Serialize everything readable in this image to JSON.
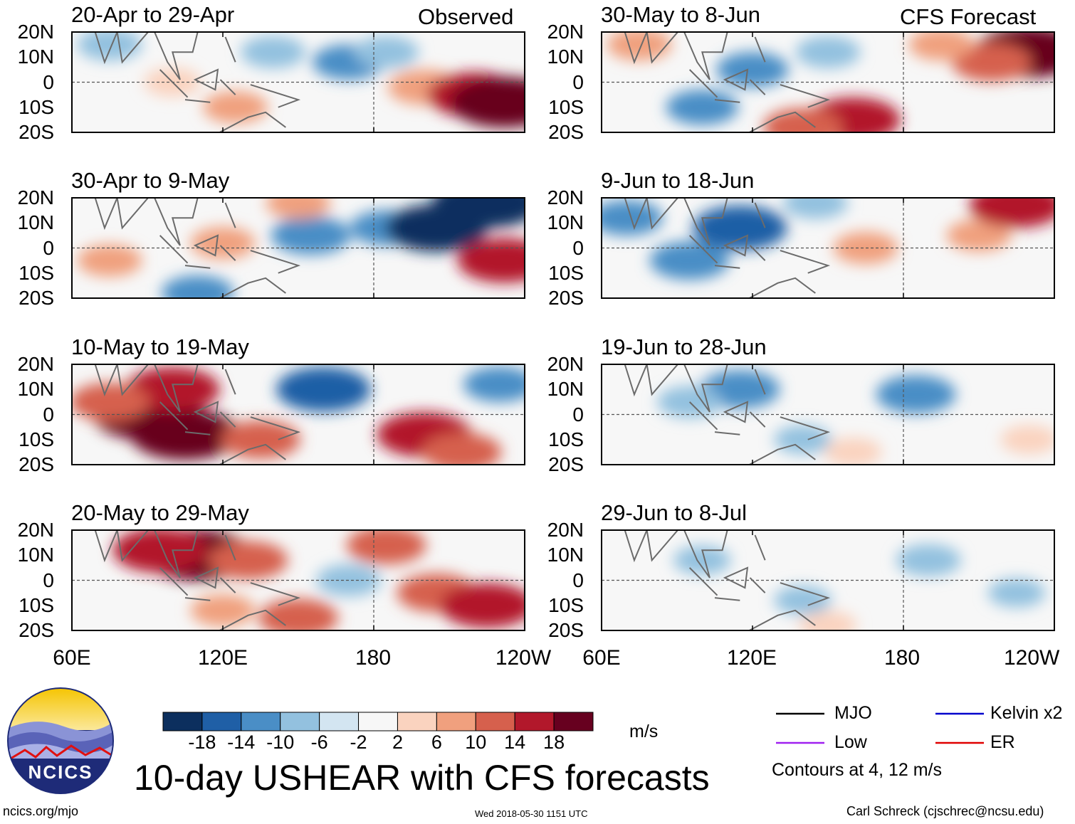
{
  "figure": {
    "title": "10-day USHEAR with CFS forecasts",
    "units": "m/s",
    "website": "ncics.org/mjo",
    "timestamp": "Wed 2018-05-30 1151 UTC",
    "credit": "Carl Schreck (cjschrec@ncsu.edu)",
    "logo_text": "NCICS",
    "left_column_label": "Observed",
    "right_column_label": "CFS Forecast"
  },
  "chart_data": [
    {
      "type": "heatmap",
      "panel": "observed",
      "title": "20-Apr to 29-Apr",
      "xlabel": "",
      "ylabel": "",
      "x_ticks": [
        "60E",
        "120E",
        "180",
        "120W"
      ],
      "y_ticks": [
        "20N",
        "10N",
        "0",
        "10S",
        "20S"
      ],
      "xlim": [
        60,
        240
      ],
      "ylim": [
        -20,
        20
      ],
      "blobs": [
        {
          "lon": 100,
          "lat": 0,
          "value": 4
        },
        {
          "lon": 125,
          "lat": -10,
          "value": 6
        },
        {
          "lon": 140,
          "lat": 12,
          "value": -6
        },
        {
          "lon": 170,
          "lat": 8,
          "value": -8
        },
        {
          "lon": 185,
          "lat": 12,
          "value": -6
        },
        {
          "lon": 200,
          "lat": -2,
          "value": 8
        },
        {
          "lon": 220,
          "lat": -5,
          "value": 14
        },
        {
          "lon": 232,
          "lat": -8,
          "value": 18
        },
        {
          "lon": 75,
          "lat": 15,
          "value": -6
        }
      ]
    },
    {
      "type": "heatmap",
      "panel": "observed",
      "title": "30-Apr to 9-May",
      "xlabel": "",
      "ylabel": "",
      "x_ticks": [
        "60E",
        "120E",
        "180",
        "120W"
      ],
      "y_ticks": [
        "20N",
        "10N",
        "0",
        "10S",
        "20S"
      ],
      "xlim": [
        60,
        240
      ],
      "ylim": [
        -20,
        20
      ],
      "blobs": [
        {
          "lon": 75,
          "lat": -5,
          "value": 6
        },
        {
          "lon": 120,
          "lat": 2,
          "value": 6
        },
        {
          "lon": 155,
          "lat": 5,
          "value": -10
        },
        {
          "lon": 185,
          "lat": 8,
          "value": -8
        },
        {
          "lon": 205,
          "lat": 8,
          "value": -16
        },
        {
          "lon": 225,
          "lat": 18,
          "value": -18
        },
        {
          "lon": 232,
          "lat": -5,
          "value": 14
        },
        {
          "lon": 110,
          "lat": -18,
          "value": -8
        },
        {
          "lon": 150,
          "lat": 18,
          "value": 6
        }
      ]
    },
    {
      "type": "heatmap",
      "panel": "observed",
      "title": "10-May to 19-May",
      "xlabel": "",
      "ylabel": "",
      "x_ticks": [
        "60E",
        "120E",
        "180",
        "120W"
      ],
      "y_ticks": [
        "20N",
        "10N",
        "0",
        "10S",
        "20S"
      ],
      "xlim": [
        60,
        240
      ],
      "ylim": [
        -20,
        20
      ],
      "blobs": [
        {
          "lon": 90,
          "lat": 0,
          "value": 18
        },
        {
          "lon": 105,
          "lat": -8,
          "value": 18
        },
        {
          "lon": 100,
          "lat": 10,
          "value": 14
        },
        {
          "lon": 75,
          "lat": 5,
          "value": 10
        },
        {
          "lon": 135,
          "lat": -10,
          "value": 10
        },
        {
          "lon": 160,
          "lat": 10,
          "value": -14
        },
        {
          "lon": 200,
          "lat": -8,
          "value": 14
        },
        {
          "lon": 215,
          "lat": -15,
          "value": 10
        },
        {
          "lon": 230,
          "lat": 12,
          "value": -8
        }
      ]
    },
    {
      "type": "heatmap",
      "panel": "observed",
      "title": "20-May to 29-May",
      "xlabel": "",
      "ylabel": "",
      "x_ticks": [
        "60E",
        "120E",
        "180",
        "120W"
      ],
      "y_ticks": [
        "20N",
        "10N",
        "0",
        "10S",
        "20S"
      ],
      "xlim": [
        60,
        240
      ],
      "ylim": [
        -20,
        20
      ],
      "blobs": [
        {
          "lon": 110,
          "lat": 10,
          "value": 18
        },
        {
          "lon": 95,
          "lat": 12,
          "value": 14
        },
        {
          "lon": 130,
          "lat": 8,
          "value": 10
        },
        {
          "lon": 120,
          "lat": -12,
          "value": 6
        },
        {
          "lon": 150,
          "lat": -15,
          "value": 10
        },
        {
          "lon": 205,
          "lat": -5,
          "value": 10
        },
        {
          "lon": 225,
          "lat": -10,
          "value": 14
        },
        {
          "lon": 185,
          "lat": 14,
          "value": 10
        },
        {
          "lon": 170,
          "lat": 0,
          "value": -6
        }
      ]
    },
    {
      "type": "heatmap",
      "panel": "forecast",
      "title": "30-May to 8-Jun",
      "xlabel": "",
      "ylabel": "",
      "x_ticks": [
        "60E",
        "120E",
        "180",
        "120W"
      ],
      "y_ticks": [
        "20N",
        "10N",
        "0",
        "10S",
        "20S"
      ],
      "xlim": [
        60,
        240
      ],
      "ylim": [
        -20,
        20
      ],
      "blobs": [
        {
          "lon": 230,
          "lat": 12,
          "value": 18
        },
        {
          "lon": 215,
          "lat": 8,
          "value": 10
        },
        {
          "lon": 195,
          "lat": 15,
          "value": 6
        },
        {
          "lon": 160,
          "lat": -15,
          "value": 14
        },
        {
          "lon": 140,
          "lat": -18,
          "value": 10
        },
        {
          "lon": 120,
          "lat": 5,
          "value": -8
        },
        {
          "lon": 100,
          "lat": -10,
          "value": -8
        },
        {
          "lon": 75,
          "lat": 15,
          "value": 6
        },
        {
          "lon": 150,
          "lat": 12,
          "value": -6
        }
      ]
    },
    {
      "type": "heatmap",
      "panel": "forecast",
      "title": "9-Jun to 18-Jun",
      "xlabel": "",
      "ylabel": "",
      "x_ticks": [
        "60E",
        "120E",
        "180",
        "120W"
      ],
      "y_ticks": [
        "20N",
        "10N",
        "0",
        "10S",
        "20S"
      ],
      "xlim": [
        60,
        240
      ],
      "ylim": [
        -20,
        20
      ],
      "blobs": [
        {
          "lon": 115,
          "lat": 8,
          "value": -14
        },
        {
          "lon": 95,
          "lat": -5,
          "value": -10
        },
        {
          "lon": 70,
          "lat": 12,
          "value": -8
        },
        {
          "lon": 165,
          "lat": 0,
          "value": 6
        },
        {
          "lon": 210,
          "lat": 5,
          "value": 6
        },
        {
          "lon": 225,
          "lat": 17,
          "value": 14
        },
        {
          "lon": 145,
          "lat": 18,
          "value": -6
        }
      ]
    },
    {
      "type": "heatmap",
      "panel": "forecast",
      "title": "19-Jun to 28-Jun",
      "xlabel": "",
      "ylabel": "",
      "x_ticks": [
        "60E",
        "120E",
        "180",
        "120W"
      ],
      "y_ticks": [
        "20N",
        "10N",
        "0",
        "10S",
        "20S"
      ],
      "xlim": [
        60,
        240
      ],
      "ylim": [
        -20,
        20
      ],
      "blobs": [
        {
          "lon": 115,
          "lat": 10,
          "value": -10
        },
        {
          "lon": 185,
          "lat": 8,
          "value": -10
        },
        {
          "lon": 95,
          "lat": 5,
          "value": -6
        },
        {
          "lon": 140,
          "lat": -10,
          "value": -4
        },
        {
          "lon": 160,
          "lat": -15,
          "value": 4
        },
        {
          "lon": 230,
          "lat": -10,
          "value": 4
        }
      ]
    },
    {
      "type": "heatmap",
      "panel": "forecast",
      "title": "29-Jun to 8-Jul",
      "xlabel": "",
      "ylabel": "",
      "x_ticks": [
        "60E",
        "120E",
        "180",
        "120W"
      ],
      "y_ticks": [
        "20N",
        "10N",
        "0",
        "10S",
        "20S"
      ],
      "xlim": [
        60,
        240
      ],
      "ylim": [
        -20,
        20
      ],
      "blobs": [
        {
          "lon": 190,
          "lat": 8,
          "value": -6
        },
        {
          "lon": 100,
          "lat": 8,
          "value": -4
        },
        {
          "lon": 140,
          "lat": -8,
          "value": -4
        },
        {
          "lon": 150,
          "lat": -18,
          "value": 4
        },
        {
          "lon": 225,
          "lat": -5,
          "value": -4
        }
      ]
    }
  ],
  "colorbar": {
    "ticks": [
      "-18",
      "-14",
      "-10",
      "-6",
      "-2",
      "2",
      "6",
      "10",
      "14",
      "18"
    ],
    "colors": [
      "#0c2f5e",
      "#1f5fa6",
      "#4a8ec6",
      "#93c1df",
      "#d3e5f1",
      "#f7f7f7",
      "#fad3bf",
      "#f0a07e",
      "#d6604d",
      "#b2182b",
      "#67001f"
    ]
  },
  "legend": {
    "items": [
      {
        "label": "MJO",
        "color": "#000000"
      },
      {
        "label": "Kelvin x2",
        "color": "#0000cc"
      },
      {
        "label": "Low",
        "color": "#a020f0"
      },
      {
        "label": "ER",
        "color": "#e00000"
      }
    ],
    "note": "Contours at 4, 12 m/s"
  }
}
